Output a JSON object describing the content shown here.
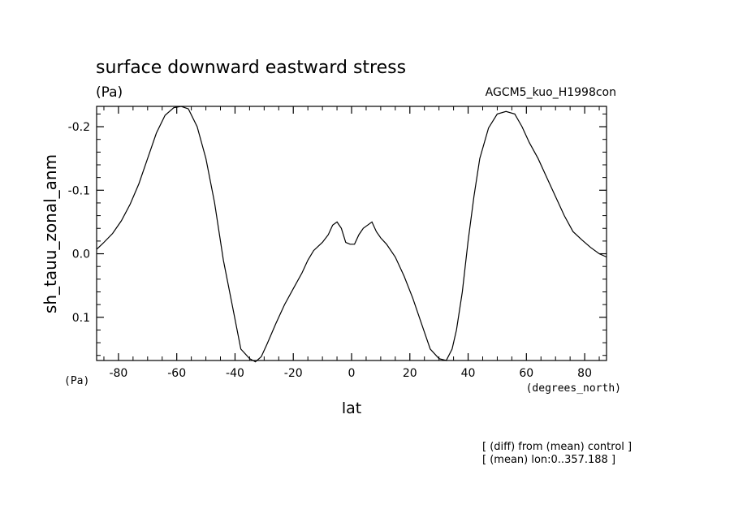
{
  "chart_data": {
    "type": "line",
    "title": "surface downward eastward stress",
    "units_left": "(Pa)",
    "run_label": "AGCM5_kuo_H1998con",
    "xlabel": "lat",
    "x_units": "(degrees_north)",
    "ylabel": "sh_tauu_zonal_anm",
    "y_units_bottom": "(Pa)",
    "notes": [
      "[ (diff) from (mean) control ]",
      "[ (mean) lon:0..357.188 ]"
    ],
    "xlim": [
      -87.5,
      87.5
    ],
    "ylim": [
      0.168,
      -0.232
    ],
    "y_inverted": true,
    "grid": false,
    "x_ticks": [
      -80,
      -60,
      -40,
      -20,
      0,
      20,
      40,
      60,
      80
    ],
    "x_tick_labels": [
      "-80",
      "-60",
      "-40",
      "-20",
      "0",
      "20",
      "40",
      "60",
      "80"
    ],
    "y_ticks": [
      -0.2,
      -0.1,
      0.0,
      0.1
    ],
    "y_tick_labels": [
      "-0.2",
      "-0.1",
      "0.0",
      "0.1"
    ],
    "series": [
      {
        "x": [
          -87.5,
          -85,
          -82,
          -79,
          -76,
          -73,
          -70,
          -67,
          -64,
          -61,
          -58.5,
          -56,
          -53,
          -50,
          -47,
          -44,
          -41,
          -38,
          -35,
          -33,
          -31,
          -29,
          -26,
          -23,
          -20,
          -17,
          -15,
          -13,
          -10,
          -8,
          -6.5,
          -5,
          -3.5,
          -2,
          -0.5,
          1,
          2.5,
          4,
          5.5,
          7,
          8.5,
          10,
          12,
          15,
          18,
          21,
          24,
          27,
          30,
          32.5,
          34.5,
          36,
          38,
          40,
          42,
          44,
          47,
          50,
          53,
          56,
          58.5,
          61,
          64,
          67,
          70,
          73,
          76,
          79,
          82,
          85,
          87.5
        ],
        "y": [
          -0.007,
          -0.018,
          -0.032,
          -0.052,
          -0.078,
          -0.11,
          -0.15,
          -0.19,
          -0.218,
          -0.23,
          -0.232,
          -0.228,
          -0.2,
          -0.15,
          -0.08,
          0.01,
          0.08,
          0.15,
          0.165,
          0.17,
          0.162,
          0.142,
          0.11,
          0.08,
          0.055,
          0.03,
          0.01,
          -0.005,
          -0.018,
          -0.03,
          -0.045,
          -0.05,
          -0.04,
          -0.018,
          -0.015,
          -0.015,
          -0.03,
          -0.04,
          -0.045,
          -0.05,
          -0.035,
          -0.025,
          -0.015,
          0.005,
          0.035,
          0.07,
          0.11,
          0.15,
          0.165,
          0.168,
          0.15,
          0.12,
          0.06,
          -0.02,
          -0.09,
          -0.15,
          -0.198,
          -0.22,
          -0.224,
          -0.22,
          -0.2,
          -0.175,
          -0.15,
          -0.12,
          -0.09,
          -0.06,
          -0.035,
          -0.022,
          -0.01,
          0.0,
          0.005
        ]
      }
    ]
  }
}
